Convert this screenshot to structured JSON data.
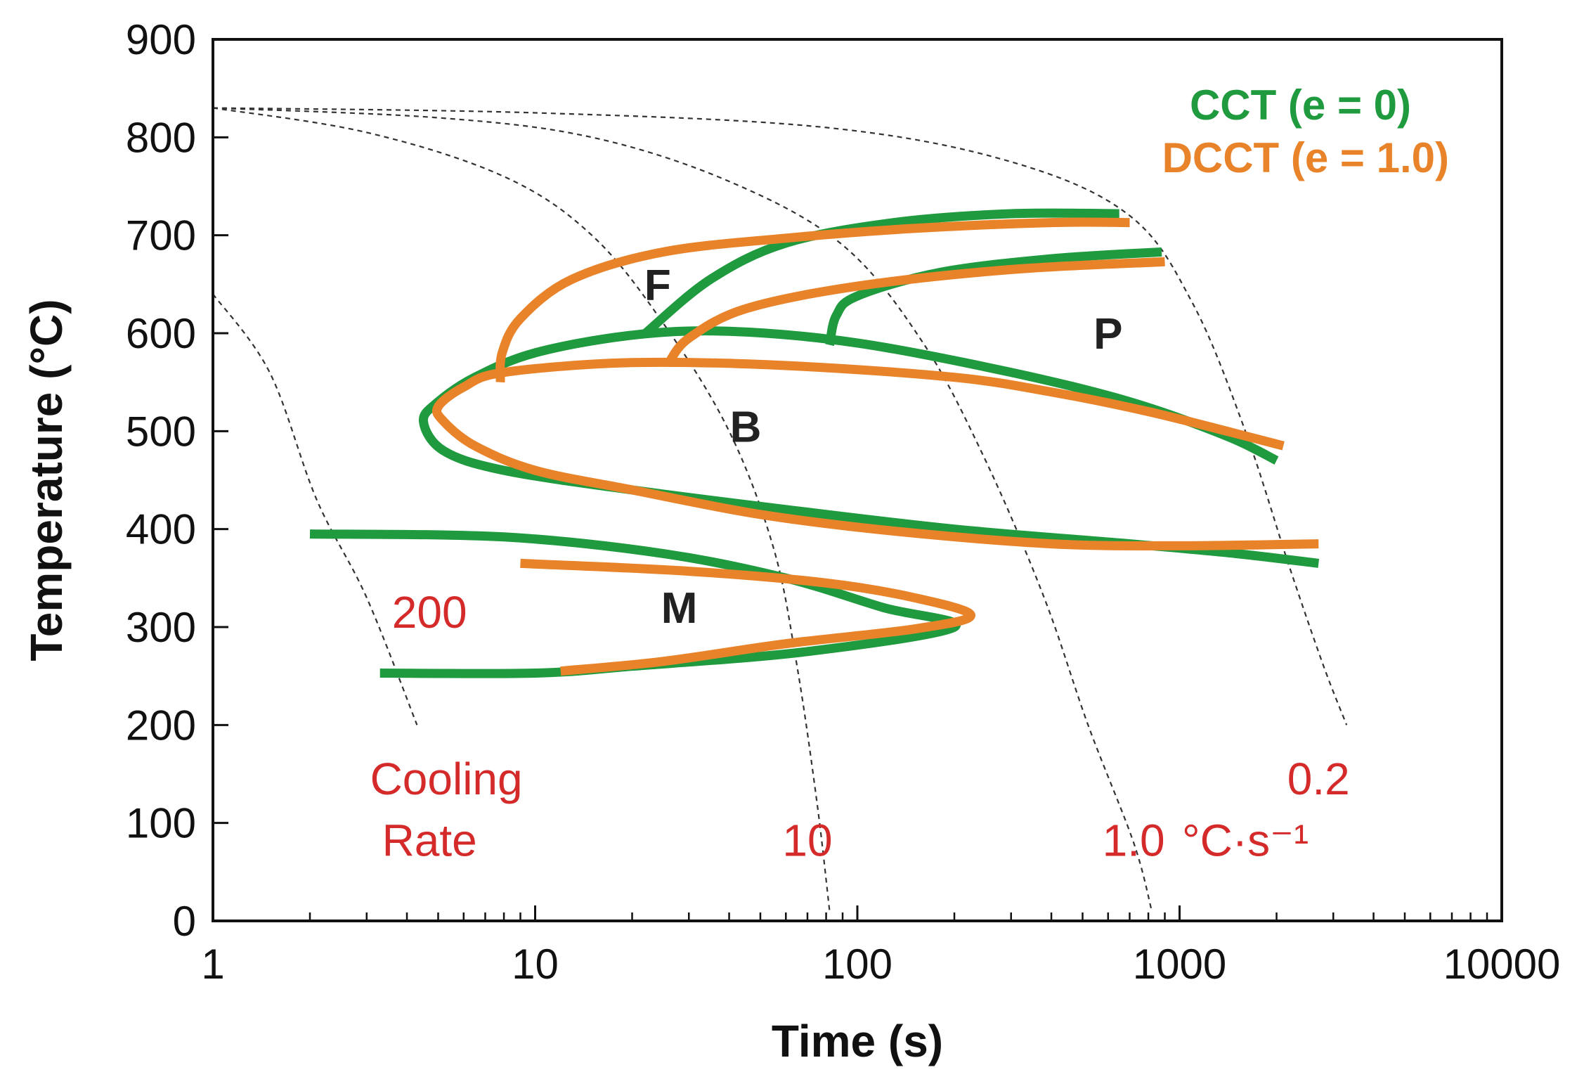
{
  "chart_data": {
    "type": "line",
    "xlabel": "Time (s)",
    "ylabel": "Temperature (°C)",
    "x_scale": "log",
    "xlim": [
      1,
      10000
    ],
    "ylim": [
      0,
      900
    ],
    "x_ticks": [
      1,
      10,
      100,
      1000,
      10000
    ],
    "x_tick_labels": [
      "1",
      "10",
      "100",
      "1000",
      "10000"
    ],
    "y_ticks": [
      0,
      100,
      200,
      300,
      400,
      500,
      600,
      700,
      800,
      900
    ],
    "y_tick_labels": [
      "0",
      "100",
      "200",
      "300",
      "400",
      "500",
      "600",
      "700",
      "800",
      "900"
    ],
    "grid": false,
    "legend_position": "top-right",
    "legend": [
      {
        "label": "CCT (e = 0)",
        "color": "#1f9a3e"
      },
      {
        "label": "DCCT (e = 1.0)",
        "color": "#e8832a"
      }
    ],
    "region_labels": [
      {
        "text": "F",
        "x": 24,
        "y": 650
      },
      {
        "text": "P",
        "x": 600,
        "y": 600
      },
      {
        "text": "B",
        "x": 45,
        "y": 505
      },
      {
        "text": "M",
        "x": 28,
        "y": 320
      }
    ],
    "cooling_rate_labels": [
      {
        "text": "200",
        "x": 4.7,
        "y": 315
      },
      {
        "text": "Cooling",
        "x": 5.3,
        "y": 145
      },
      {
        "text": "Rate",
        "x": 4.7,
        "y": 82
      },
      {
        "text": "10",
        "x": 70,
        "y": 82
      },
      {
        "text": "1.0",
        "x": 720,
        "y": 82
      },
      {
        "text": "°C·s⁻¹",
        "x": 1600,
        "y": 82
      },
      {
        "text": "0.2",
        "x": 2700,
        "y": 145
      }
    ],
    "cooling_curves": [
      {
        "rate": "200",
        "color": "#333333",
        "points": [
          [
            1,
            640
          ],
          [
            1.5,
            560
          ],
          [
            2.1,
            430
          ],
          [
            3.0,
            330
          ],
          [
            4.3,
            200
          ]
        ]
      },
      {
        "rate": "",
        "color": "#333333",
        "points": [
          [
            1,
            830
          ],
          [
            3,
            805
          ],
          [
            8,
            760
          ],
          [
            15,
            700
          ],
          [
            25,
            610
          ],
          [
            40,
            500
          ],
          [
            55,
            380
          ],
          [
            65,
            260
          ],
          [
            75,
            120
          ],
          [
            82,
            10
          ]
        ]
      },
      {
        "rate": "10",
        "color": "#333333",
        "points": [
          [
            1,
            830
          ],
          [
            5,
            820
          ],
          [
            15,
            800
          ],
          [
            40,
            755
          ],
          [
            90,
            690
          ],
          [
            160,
            590
          ],
          [
            250,
            470
          ],
          [
            380,
            330
          ],
          [
            520,
            200
          ],
          [
            720,
            80
          ],
          [
            820,
            10
          ]
        ]
      },
      {
        "rate": "1.0",
        "color": "#333333",
        "points": [
          [
            1,
            830
          ],
          [
            10,
            825
          ],
          [
            80,
            810
          ],
          [
            300,
            775
          ],
          [
            700,
            720
          ],
          [
            1100,
            630
          ],
          [
            1600,
            500
          ],
          [
            2200,
            360
          ],
          [
            2800,
            260
          ],
          [
            3300,
            200
          ]
        ]
      }
    ],
    "series": [
      {
        "name": "CCT (e = 0)",
        "color": "#1f9a3e",
        "segments": [
          [
            [
              22,
              600
            ],
            [
              35,
              655
            ],
            [
              60,
              692
            ],
            [
              130,
              713
            ],
            [
              300,
              722
            ],
            [
              650,
              722
            ]
          ],
          [
            [
              82,
              588
            ],
            [
              86,
              618
            ],
            [
              100,
              638
            ],
            [
              180,
              662
            ],
            [
              400,
              676
            ],
            [
              880,
              683
            ]
          ],
          [
            [
              2000,
              470
            ],
            [
              1400,
              495
            ],
            [
              700,
              530
            ],
            [
              300,
              560
            ],
            [
              100,
              590
            ],
            [
              40,
              602
            ],
            [
              20,
              598
            ],
            [
              10,
              580
            ],
            [
              6.5,
              555
            ],
            [
              5,
              530
            ],
            [
              4.5,
              510
            ],
            [
              5.2,
              480
            ],
            [
              8,
              460
            ],
            [
              20,
              440
            ],
            [
              60,
              420
            ],
            [
              200,
              400
            ],
            [
              700,
              385
            ],
            [
              1500,
              375
            ],
            [
              2700,
              365
            ]
          ],
          [
            [
              2,
              395
            ],
            [
              8,
              392
            ],
            [
              25,
              375
            ],
            [
              60,
              350
            ],
            [
              120,
              320
            ],
            [
              200,
              300
            ],
            [
              70,
              275
            ],
            [
              20,
              260
            ],
            [
              10,
              253
            ],
            [
              3.3,
              253
            ]
          ]
        ]
      },
      {
        "name": "DCCT (e = 1.0)",
        "color": "#e8832a",
        "segments": [
          [
            [
              7.8,
              550
            ],
            [
              7.9,
              580
            ],
            [
              9,
              615
            ],
            [
              13,
              655
            ],
            [
              25,
              683
            ],
            [
              60,
              697
            ],
            [
              150,
              707
            ],
            [
              400,
              713
            ],
            [
              700,
              713
            ]
          ],
          [
            [
              26,
              570
            ],
            [
              30,
              595
            ],
            [
              45,
              625
            ],
            [
              100,
              648
            ],
            [
              300,
              665
            ],
            [
              900,
              673
            ]
          ],
          [
            [
              2100,
              485
            ],
            [
              1400,
              500
            ],
            [
              800,
              520
            ],
            [
              400,
              540
            ],
            [
              200,
              555
            ],
            [
              60,
              567
            ],
            [
              20,
              570
            ],
            [
              8,
              560
            ],
            [
              6,
              545
            ],
            [
              5,
              525
            ],
            [
              5.2,
              510
            ],
            [
              6.5,
              485
            ],
            [
              10,
              460
            ],
            [
              20,
              440
            ],
            [
              50,
              415
            ],
            [
              130,
              398
            ],
            [
              400,
              385
            ],
            [
              1000,
              383
            ],
            [
              2700,
              385
            ]
          ],
          [
            [
              9,
              365
            ],
            [
              30,
              357
            ],
            [
              80,
              345
            ],
            [
              150,
              330
            ],
            [
              225,
              312
            ],
            [
              150,
              298
            ],
            [
              60,
              283
            ],
            [
              25,
              265
            ],
            [
              12,
              255
            ]
          ]
        ]
      }
    ]
  }
}
